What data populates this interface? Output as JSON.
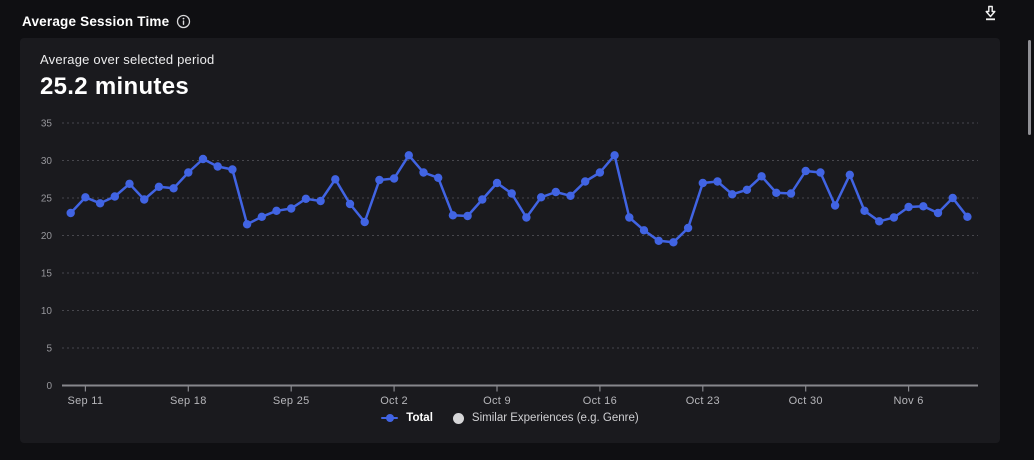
{
  "colors": {
    "page_bg": "#0f0f12",
    "card_bg": "#1a1a1e",
    "series_blue": "#4164e3",
    "similar_gray": "#d6d6d8",
    "grid": "#47474d",
    "axis": "#87878c",
    "y_label": "#97979c",
    "x_label": "#b6b6ba"
  },
  "header": {
    "title": "Average Session Time",
    "info_icon": "info-icon",
    "download_icon": "download-icon"
  },
  "summary": {
    "label": "Average over selected period",
    "value": "25.2 minutes"
  },
  "chart_data": {
    "type": "line",
    "title": "Average Session Time",
    "ylabel": "",
    "xlabel": "",
    "ylim": [
      0,
      35
    ],
    "y_ticks": [
      0,
      5,
      10,
      15,
      20,
      25,
      30,
      35
    ],
    "grid": "horizontal-dashed",
    "x_tick_labels": [
      "Sep 11",
      "Sep 18",
      "Sep 25",
      "Oct 2",
      "Oct 9",
      "Oct 16",
      "Oct 23",
      "Oct 30",
      "Nov 6"
    ],
    "x_tick_indices": [
      1,
      8,
      15,
      22,
      29,
      36,
      43,
      50,
      57
    ],
    "series": [
      {
        "name": "Total",
        "color": "#4164e3",
        "marker": "line-dot",
        "values": [
          23.0,
          25.1,
          24.3,
          25.2,
          26.9,
          24.8,
          26.5,
          26.3,
          28.4,
          30.2,
          29.2,
          28.8,
          21.5,
          22.5,
          23.3,
          23.6,
          24.9,
          24.6,
          27.5,
          24.2,
          21.8,
          27.4,
          27.6,
          30.7,
          28.4,
          27.7,
          22.7,
          22.6,
          24.8,
          27.0,
          25.6,
          22.4,
          25.1,
          25.8,
          25.3,
          27.2,
          28.4,
          30.7,
          22.4,
          20.7,
          19.3,
          19.1,
          21.0,
          27.0,
          27.2,
          25.5,
          26.1,
          27.9,
          25.7,
          25.6,
          28.6,
          28.4,
          24.0,
          28.1,
          23.3,
          21.9,
          22.4,
          23.8,
          23.9,
          23.0,
          25.0,
          22.5
        ]
      }
    ],
    "legend_position": "bottom-center",
    "legend": [
      {
        "label": "Total",
        "color": "#4164e3",
        "marker": "line-dot"
      },
      {
        "label": "Similar Experiences (e.g. Genre)",
        "color": "#d6d6d8",
        "marker": "dot"
      }
    ]
  }
}
